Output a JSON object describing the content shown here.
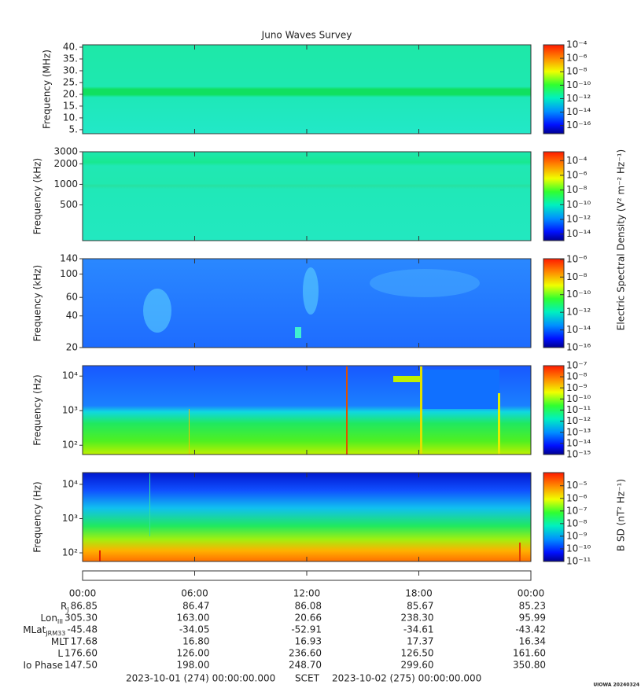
{
  "title": "Juno Waves Survey",
  "chart_data": [
    {
      "type": "spectrogram",
      "ylabel": "Frequency (MHz)",
      "ylog": false,
      "ylim": [
        3.3,
        41
      ],
      "yticks": [
        {
          "value": 5,
          "label": "5."
        },
        {
          "value": 10,
          "label": "10."
        },
        {
          "value": 15,
          "label": "15."
        },
        {
          "value": 20,
          "label": "20."
        },
        {
          "value": 25,
          "label": "25."
        },
        {
          "value": 30,
          "label": "30."
        },
        {
          "value": 35,
          "label": "35."
        },
        {
          "value": 40,
          "label": "40."
        }
      ],
      "clim": [
        6.3e-18,
        0.0001
      ],
      "cticks": [
        {
          "value": 0.0001,
          "label": "10⁻⁴"
        },
        {
          "value": 1e-06,
          "label": "10⁻⁶"
        },
        {
          "value": 1e-08,
          "label": "10⁻⁸"
        },
        {
          "value": 1e-10,
          "label": "10⁻¹⁰"
        },
        {
          "value": 1e-12,
          "label": "10⁻¹²"
        },
        {
          "value": 1e-14,
          "label": "10⁻¹⁴"
        },
        {
          "value": 1e-16,
          "label": "10⁻¹⁶"
        }
      ]
    },
    {
      "type": "spectrogram",
      "ylabel": "Frequency (kHz)",
      "ylog": true,
      "ylim": [
        150,
        3000
      ],
      "yticks": [
        500,
        1000,
        2000,
        3000
      ],
      "clim": [
        1.3e-15,
        0.0016
      ],
      "cticks": [
        {
          "value": 0.0001,
          "label": "10⁻⁴"
        },
        {
          "value": 1e-06,
          "label": "10⁻⁶"
        },
        {
          "value": 1e-08,
          "label": "10⁻⁸"
        },
        {
          "value": 1e-10,
          "label": "10⁻¹⁰"
        },
        {
          "value": 1e-12,
          "label": "10⁻¹²"
        },
        {
          "value": 1e-14,
          "label": "10⁻¹⁴"
        }
      ]
    },
    {
      "type": "spectrogram",
      "ylabel": "Frequency (kHz)",
      "ylog": true,
      "ylim": [
        20,
        140
      ],
      "yticks": [
        20,
        40,
        60,
        100,
        140
      ],
      "clim": [
        1e-16,
        1.2e-06
      ],
      "cticks": [
        {
          "value": 1e-06,
          "label": "10⁻⁶"
        },
        {
          "value": 1e-08,
          "label": "10⁻⁸"
        },
        {
          "value": 1e-10,
          "label": "10⁻¹⁰"
        },
        {
          "value": 1e-12,
          "label": "10⁻¹²"
        },
        {
          "value": 1e-14,
          "label": "10⁻¹⁴"
        },
        {
          "value": 1e-16,
          "label": "10⁻¹⁶"
        }
      ]
    },
    {
      "type": "spectrogram",
      "ylabel": "Frequency (Hz)",
      "ylog": true,
      "ylim": [
        54,
        20000
      ],
      "yticks": [
        {
          "value": 100,
          "label": "10²"
        },
        {
          "value": 1000,
          "label": "10³"
        },
        {
          "value": 10000,
          "label": "10⁴"
        }
      ],
      "clim": [
        1e-15,
        1e-07
      ],
      "cticks": [
        {
          "value": 1e-07,
          "label": "10⁻⁷"
        },
        {
          "value": 1e-08,
          "label": "10⁻⁸"
        },
        {
          "value": 1e-09,
          "label": "10⁻⁹"
        },
        {
          "value": 1e-10,
          "label": "10⁻¹⁰"
        },
        {
          "value": 1e-11,
          "label": "10⁻¹¹"
        },
        {
          "value": 1e-12,
          "label": "10⁻¹²"
        },
        {
          "value": 1e-13,
          "label": "10⁻¹³"
        },
        {
          "value": 1e-14,
          "label": "10⁻¹⁴"
        },
        {
          "value": 1e-15,
          "label": "10⁻¹⁵"
        }
      ]
    },
    {
      "type": "spectrogram",
      "ylabel": "Frequency (Hz)",
      "ylog": true,
      "ylim": [
        56,
        22000
      ],
      "yticks": [
        {
          "value": 100,
          "label": "10²"
        },
        {
          "value": 1000,
          "label": "10³"
        },
        {
          "value": 10000,
          "label": "10⁴"
        }
      ],
      "clim": [
        1e-11,
        0.00011
      ],
      "cticks": [
        {
          "value": 1e-05,
          "label": "10⁻⁵"
        },
        {
          "value": 1e-06,
          "label": "10⁻⁶"
        },
        {
          "value": 1e-07,
          "label": "10⁻⁷"
        },
        {
          "value": 1e-08,
          "label": "10⁻⁸"
        },
        {
          "value": 1e-09,
          "label": "10⁻⁹"
        },
        {
          "value": 1e-10,
          "label": "10⁻¹⁰"
        },
        {
          "value": 1e-11,
          "label": "10⁻¹¹"
        }
      ]
    }
  ],
  "colorbar_labels": [
    "Electric Spectral Density (V² m⁻² Hz⁻¹)",
    "B SD (nT² Hz⁻¹)"
  ],
  "time_axis": {
    "xlim": [
      0,
      24
    ],
    "xticks": [
      {
        "value": 0,
        "label": "00:00"
      },
      {
        "value": 6,
        "label": "06:00"
      },
      {
        "value": 12,
        "label": "12:00"
      },
      {
        "value": 18,
        "label": "18:00"
      },
      {
        "value": 24,
        "label": "00:00"
      }
    ]
  },
  "ephemeris": [
    {
      "label": "R",
      "sub": "J",
      "values": [
        "86.85",
        "86.47",
        "86.08",
        "85.67",
        "85.23"
      ]
    },
    {
      "label": "Lon",
      "sub": "III",
      "values": [
        "305.30",
        "163.00",
        "20.66",
        "238.30",
        "95.99"
      ]
    },
    {
      "label": "MLat",
      "sub": "JRM33",
      "values": [
        "-45.48",
        "-34.05",
        "-52.91",
        "-34.61",
        "-43.42"
      ]
    },
    {
      "label": "MLT",
      "values": [
        "17.68",
        "16.80",
        "16.93",
        "17.37",
        "16.34"
      ]
    },
    {
      "label": "L",
      "values": [
        "176.60",
        "126.00",
        "236.60",
        "126.50",
        "161.60"
      ]
    },
    {
      "label": "Io Phase",
      "values": [
        "147.50",
        "198.00",
        "248.70",
        "299.60",
        "350.80"
      ]
    }
  ],
  "footer": {
    "start": "2023-10-01 (274) 00:00:00.000",
    "scet": "SCET",
    "end": "2023-10-02 (275) 00:00:00.000",
    "stamp": "UIOWA 20240324"
  }
}
